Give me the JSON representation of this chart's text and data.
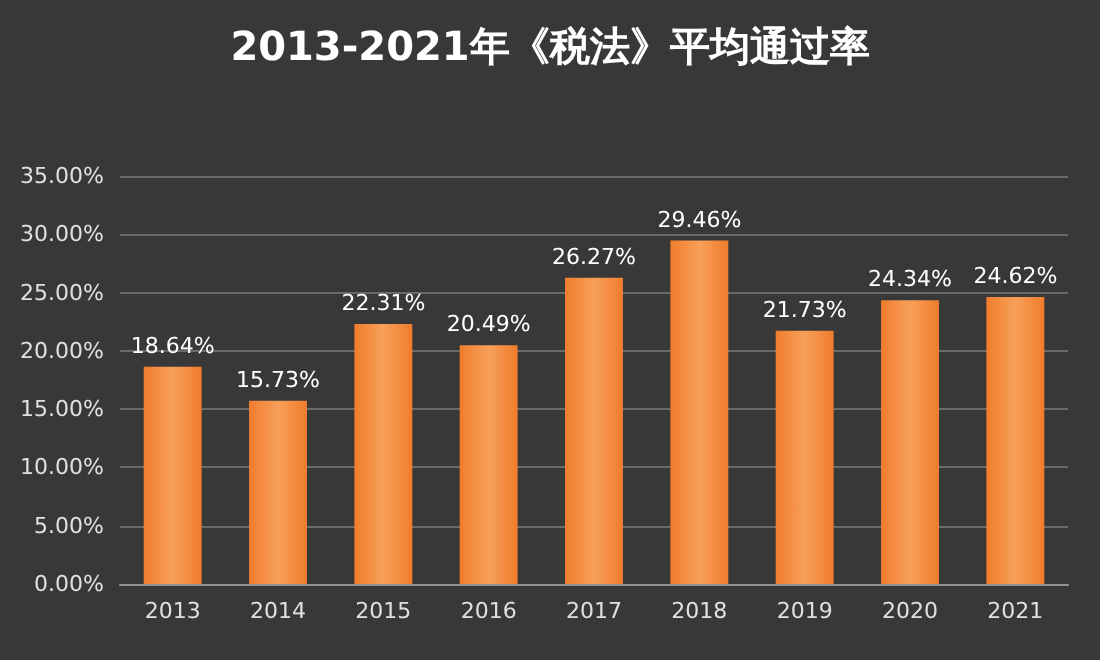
{
  "chart_data": {
    "type": "bar",
    "title": "2013-2021年《税法》平均通过率",
    "categories": [
      "2013",
      "2014",
      "2015",
      "2016",
      "2017",
      "2018",
      "2019",
      "2020",
      "2021"
    ],
    "values": [
      18.64,
      15.73,
      22.31,
      20.49,
      26.27,
      29.46,
      21.73,
      24.34,
      24.62
    ],
    "value_labels": [
      "18.64%",
      "15.73%",
      "22.31%",
      "20.49%",
      "26.27%",
      "29.46%",
      "21.73%",
      "24.34%",
      "24.62%"
    ],
    "color": "#f07c2c",
    "ylim": [
      0,
      35
    ],
    "yticks": [
      {
        "value": 0,
        "label": "0.00%"
      },
      {
        "value": 5,
        "label": "5.00%"
      },
      {
        "value": 10,
        "label": "10.00%"
      },
      {
        "value": 15,
        "label": "15.00%"
      },
      {
        "value": 20,
        "label": "20.00%"
      },
      {
        "value": 25,
        "label": "25.00%"
      },
      {
        "value": 30,
        "label": "30.00%"
      },
      {
        "value": 35,
        "label": "35.00%"
      }
    ],
    "grid": true
  }
}
